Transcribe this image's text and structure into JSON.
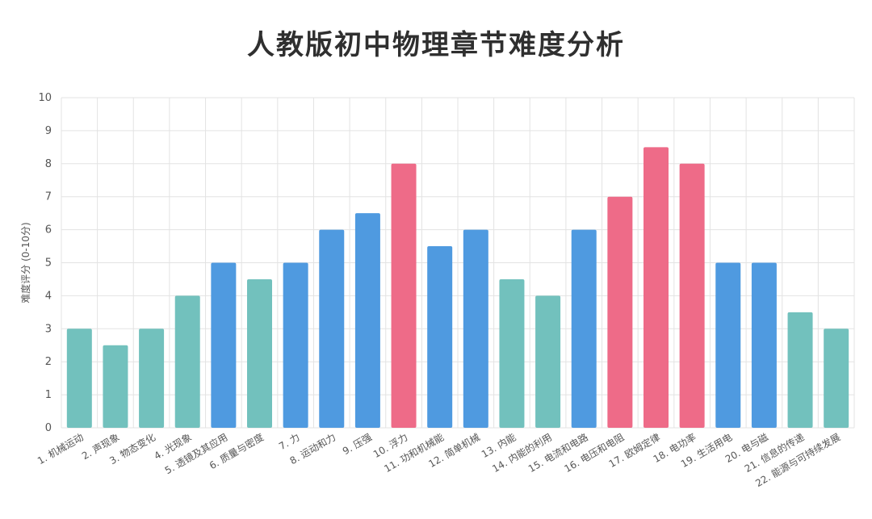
{
  "chart_data": {
    "type": "bar",
    "title": "人教版初中物理章节难度分析",
    "ylabel": "难度评分 (0-10分)",
    "xlabel": "",
    "ylim": [
      0,
      10
    ],
    "yticks": [
      0,
      1,
      2,
      3,
      4,
      5,
      6,
      7,
      8,
      9,
      10
    ],
    "grid": true,
    "colors": {
      "teal": "#72c1bd",
      "blue": "#4f9ae0",
      "pink": "#ee6b88",
      "grid": "#e3e3e3"
    },
    "categories": [
      "1. 机械运动",
      "2. 声现象",
      "3. 物态变化",
      "4. 光现象",
      "5. 透镜及其应用",
      "6. 质量与密度",
      "7. 力",
      "8. 运动和力",
      "9. 压强",
      "10. 浮力",
      "11. 功和机械能",
      "12. 简单机械",
      "13. 内能",
      "14. 内能的利用",
      "15. 电流和电路",
      "16. 电压和电阻",
      "17. 欧姆定律",
      "18. 电功率",
      "19. 生活用电",
      "20. 电与磁",
      "21. 信息的传递",
      "22. 能源与可持续发展"
    ],
    "values": [
      3,
      2.5,
      3,
      4,
      5,
      4.5,
      5,
      6,
      6.5,
      8,
      5.5,
      6,
      4.5,
      4,
      6,
      7,
      8.5,
      8,
      5,
      5,
      3.5,
      3
    ],
    "bar_colors": [
      "teal",
      "teal",
      "teal",
      "teal",
      "blue",
      "teal",
      "blue",
      "blue",
      "blue",
      "pink",
      "blue",
      "blue",
      "teal",
      "teal",
      "blue",
      "pink",
      "pink",
      "pink",
      "blue",
      "blue",
      "teal",
      "teal"
    ]
  }
}
